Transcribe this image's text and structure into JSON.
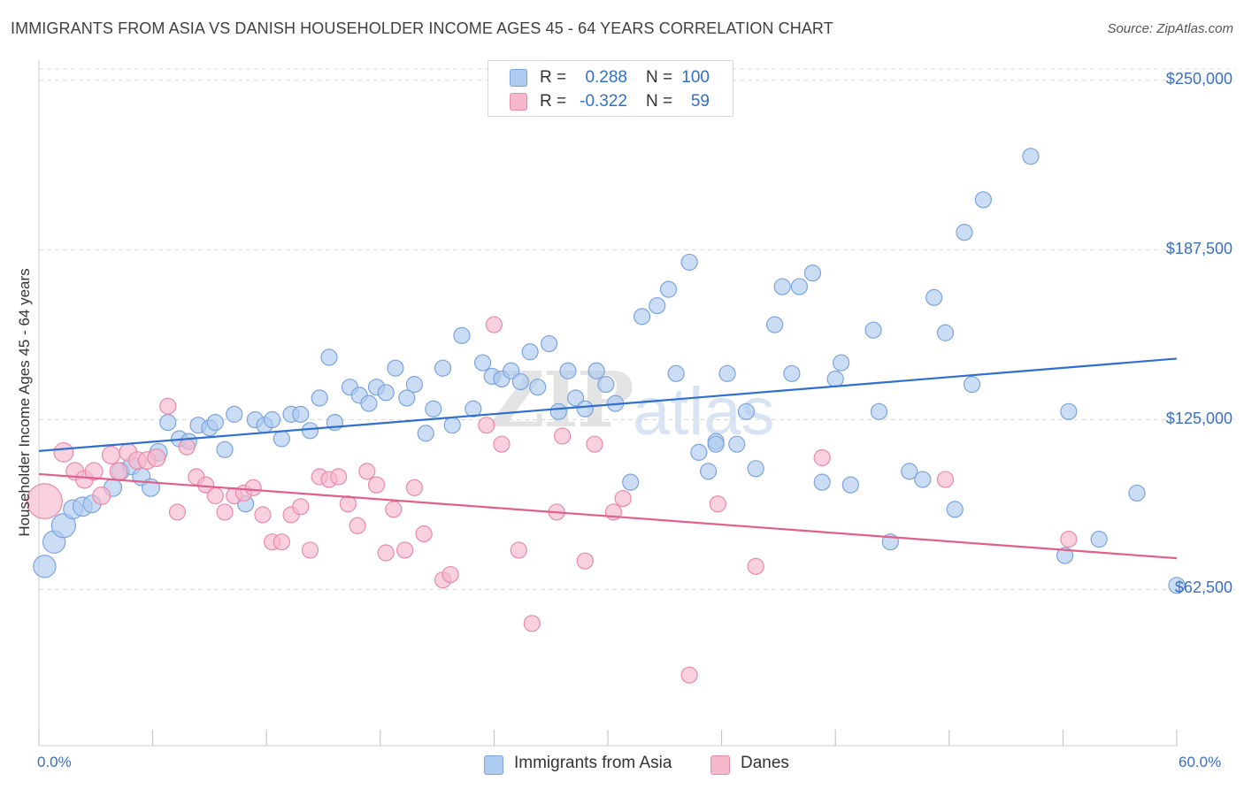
{
  "title": "IMMIGRANTS FROM ASIA VS DANISH HOUSEHOLDER INCOME AGES 45 - 64 YEARS CORRELATION CHART",
  "source": "Source: ZipAtlas.com",
  "watermark": {
    "part1": "ZIP",
    "part2": "atlas"
  },
  "colors": {
    "blue_fill": "#aecbf0",
    "blue_stroke": "#7ca4dc",
    "blue_line": "#2f6fcf",
    "pink_fill": "#f6b9cc",
    "pink_stroke": "#e88ba8",
    "pink_line": "#e0608a",
    "tick_text": "#3a6fc4",
    "grid": "#dcdcdc"
  },
  "stats": [
    {
      "r_label": "R =",
      "r_value": "0.288",
      "n_label": "N =",
      "n_value": "100"
    },
    {
      "r_label": "R =",
      "r_value": "-0.322",
      "n_label": "N =",
      "n_value": "59"
    }
  ],
  "legend": [
    {
      "label": "Immigrants from Asia"
    },
    {
      "label": "Danes"
    }
  ],
  "chart_data": {
    "type": "scatter",
    "title": "IMMIGRANTS FROM ASIA VS DANISH HOUSEHOLDER INCOME AGES 45 - 64 YEARS CORRELATION CHART",
    "xlabel": "",
    "ylabel": "Householder Income Ages 45 - 64 years",
    "xlim": [
      0,
      60
    ],
    "ylim": [
      5000,
      260000
    ],
    "x_tick_labels": [
      "0.0%",
      "60.0%"
    ],
    "y_ticks": [
      62500,
      125000,
      187500,
      250000
    ],
    "y_tick_labels": [
      "$62,500",
      "$125,000",
      "$187,500",
      "$250,000"
    ],
    "grid": true,
    "legend_position": "bottom-center",
    "series": [
      {
        "name": "Immigrants from Asia",
        "r": 0.288,
        "n": 100,
        "trend": {
          "x": [
            0,
            60
          ],
          "y": [
            113500,
            147500
          ]
        },
        "points": [
          [
            0.3,
            71000,
            1.4
          ],
          [
            0.8,
            80000,
            1.4
          ],
          [
            1.3,
            86000,
            1.5
          ],
          [
            1.8,
            92000,
            1.2
          ],
          [
            2.3,
            93000,
            1.2
          ],
          [
            2.8,
            94000,
            1.1
          ],
          [
            3.9,
            100000,
            1.1
          ],
          [
            4.3,
            106000,
            1.1
          ],
          [
            4.9,
            108000,
            1.1
          ],
          [
            5.4,
            104000,
            1.1
          ],
          [
            5.9,
            100000,
            1.1
          ],
          [
            6.3,
            113000,
            1.1
          ],
          [
            6.8,
            124000,
            1.0
          ],
          [
            7.4,
            118000,
            1.0
          ],
          [
            7.9,
            117000,
            1.0
          ],
          [
            8.4,
            123000,
            1.0
          ],
          [
            9.0,
            122000,
            1.0
          ],
          [
            9.3,
            124000,
            1.0
          ],
          [
            9.8,
            114000,
            1.0
          ],
          [
            10.3,
            127000,
            1.0
          ],
          [
            10.9,
            94000,
            1.0
          ],
          [
            11.4,
            125000,
            1.0
          ],
          [
            11.9,
            123000,
            1.0
          ],
          [
            12.3,
            125000,
            1.0
          ],
          [
            12.8,
            118000,
            1.0
          ],
          [
            13.3,
            127000,
            1.0
          ],
          [
            13.8,
            127000,
            1.0
          ],
          [
            14.3,
            121000,
            1.0
          ],
          [
            14.8,
            133000,
            1.0
          ],
          [
            15.3,
            148000,
            1.0
          ],
          [
            15.6,
            124000,
            1.0
          ],
          [
            16.4,
            137000,
            1.0
          ],
          [
            16.9,
            134000,
            1.0
          ],
          [
            17.4,
            131000,
            1.0
          ],
          [
            17.8,
            137000,
            1.0
          ],
          [
            18.3,
            135000,
            1.0
          ],
          [
            18.8,
            144000,
            1.0
          ],
          [
            19.4,
            133000,
            1.0
          ],
          [
            19.8,
            138000,
            1.0
          ],
          [
            20.4,
            120000,
            1.0
          ],
          [
            20.8,
            129000,
            1.0
          ],
          [
            21.3,
            144000,
            1.0
          ],
          [
            21.8,
            123000,
            1.0
          ],
          [
            22.3,
            156000,
            1.0
          ],
          [
            22.9,
            129000,
            1.0
          ],
          [
            23.4,
            146000,
            1.0
          ],
          [
            23.9,
            141000,
            1.0
          ],
          [
            24.4,
            140000,
            1.0
          ],
          [
            24.9,
            143000,
            1.0
          ],
          [
            25.4,
            139000,
            1.0
          ],
          [
            25.9,
            150000,
            1.0
          ],
          [
            26.3,
            137000,
            1.0
          ],
          [
            26.9,
            153000,
            1.0
          ],
          [
            27.4,
            128000,
            1.0
          ],
          [
            27.9,
            143000,
            1.0
          ],
          [
            28.3,
            133000,
            1.0
          ],
          [
            28.8,
            129000,
            1.0
          ],
          [
            29.4,
            143000,
            1.0
          ],
          [
            29.9,
            138000,
            1.0
          ],
          [
            30.4,
            131000,
            1.0
          ],
          [
            31.2,
            102000,
            1.0
          ],
          [
            31.8,
            163000,
            1.0
          ],
          [
            32.6,
            167000,
            1.0
          ],
          [
            33.2,
            173000,
            1.0
          ],
          [
            33.6,
            142000,
            1.0
          ],
          [
            34.3,
            183000,
            1.0
          ],
          [
            34.8,
            113000,
            1.0
          ],
          [
            35.3,
            106000,
            1.0
          ],
          [
            35.7,
            117000,
            1.0
          ],
          [
            36.3,
            142000,
            1.0
          ],
          [
            36.8,
            116000,
            1.0
          ],
          [
            37.3,
            128000,
            1.0
          ],
          [
            37.8,
            107000,
            1.0
          ],
          [
            38.8,
            160000,
            1.0
          ],
          [
            39.2,
            174000,
            1.0
          ],
          [
            39.7,
            142000,
            1.0
          ],
          [
            40.1,
            174000,
            1.0
          ],
          [
            40.8,
            179000,
            1.0
          ],
          [
            41.3,
            102000,
            1.0
          ],
          [
            42.0,
            140000,
            1.0
          ],
          [
            42.3,
            146000,
            1.0
          ],
          [
            42.8,
            101000,
            1.0
          ],
          [
            44.0,
            158000,
            1.0
          ],
          [
            44.3,
            128000,
            1.0
          ],
          [
            44.9,
            80000,
            1.0
          ],
          [
            45.9,
            106000,
            1.0
          ],
          [
            46.6,
            103000,
            1.0
          ],
          [
            47.2,
            170000,
            1.0
          ],
          [
            47.8,
            157000,
            1.0
          ],
          [
            48.3,
            92000,
            1.0
          ],
          [
            48.8,
            194000,
            1.0
          ],
          [
            49.2,
            138000,
            1.0
          ],
          [
            49.8,
            206000,
            1.0
          ],
          [
            52.3,
            222000,
            1.0
          ],
          [
            54.1,
            75000,
            1.0
          ],
          [
            54.3,
            128000,
            1.0
          ],
          [
            55.9,
            81000,
            1.0
          ],
          [
            57.9,
            98000,
            1.0
          ],
          [
            60.0,
            64000,
            1.0
          ],
          [
            35.7,
            116000,
            1.0
          ]
        ]
      },
      {
        "name": "Danes",
        "r": -0.322,
        "n": 59,
        "trend": {
          "x": [
            0,
            60
          ],
          "y": [
            105000,
            74000
          ]
        },
        "points": [
          [
            0.3,
            95000,
            2.2
          ],
          [
            1.3,
            113000,
            1.2
          ],
          [
            1.9,
            106000,
            1.1
          ],
          [
            2.4,
            103000,
            1.1
          ],
          [
            2.9,
            106000,
            1.1
          ],
          [
            3.3,
            97000,
            1.1
          ],
          [
            3.8,
            112000,
            1.1
          ],
          [
            4.2,
            106000,
            1.1
          ],
          [
            4.7,
            113000,
            1.1
          ],
          [
            5.2,
            110000,
            1.1
          ],
          [
            5.7,
            110000,
            1.1
          ],
          [
            6.2,
            111000,
            1.1
          ],
          [
            6.8,
            130000,
            1.0
          ],
          [
            7.3,
            91000,
            1.0
          ],
          [
            7.8,
            115000,
            1.0
          ],
          [
            8.3,
            104000,
            1.0
          ],
          [
            8.8,
            101000,
            1.0
          ],
          [
            9.3,
            97000,
            1.0
          ],
          [
            9.8,
            91000,
            1.0
          ],
          [
            10.3,
            97000,
            1.0
          ],
          [
            10.8,
            98000,
            1.0
          ],
          [
            11.3,
            100000,
            1.0
          ],
          [
            11.8,
            90000,
            1.0
          ],
          [
            12.3,
            80000,
            1.0
          ],
          [
            12.8,
            80000,
            1.0
          ],
          [
            13.3,
            90000,
            1.0
          ],
          [
            13.8,
            93000,
            1.0
          ],
          [
            14.3,
            77000,
            1.0
          ],
          [
            14.8,
            104000,
            1.0
          ],
          [
            15.3,
            103000,
            1.0
          ],
          [
            15.8,
            104000,
            1.0
          ],
          [
            16.3,
            94000,
            1.0
          ],
          [
            16.8,
            86000,
            1.0
          ],
          [
            17.3,
            106000,
            1.0
          ],
          [
            17.8,
            101000,
            1.0
          ],
          [
            18.3,
            76000,
            1.0
          ],
          [
            18.7,
            92000,
            1.0
          ],
          [
            19.3,
            77000,
            1.0
          ],
          [
            19.8,
            100000,
            1.0
          ],
          [
            20.3,
            83000,
            1.0
          ],
          [
            21.3,
            66000,
            1.0
          ],
          [
            21.7,
            68000,
            1.0
          ],
          [
            23.6,
            123000,
            1.0
          ],
          [
            24.0,
            160000,
            1.0
          ],
          [
            25.3,
            77000,
            1.0
          ],
          [
            26.0,
            50000,
            1.0
          ],
          [
            27.3,
            91000,
            1.0
          ],
          [
            27.6,
            119000,
            1.0
          ],
          [
            28.8,
            73000,
            1.0
          ],
          [
            30.3,
            91000,
            1.0
          ],
          [
            30.8,
            96000,
            1.0
          ],
          [
            34.3,
            31000,
            1.0
          ],
          [
            35.8,
            94000,
            1.0
          ],
          [
            37.8,
            71000,
            1.0
          ],
          [
            41.3,
            111000,
            1.0
          ],
          [
            47.8,
            103000,
            1.0
          ],
          [
            54.3,
            81000,
            1.0
          ],
          [
            24.4,
            116000,
            1.0
          ],
          [
            29.3,
            116000,
            1.0
          ]
        ]
      }
    ]
  }
}
